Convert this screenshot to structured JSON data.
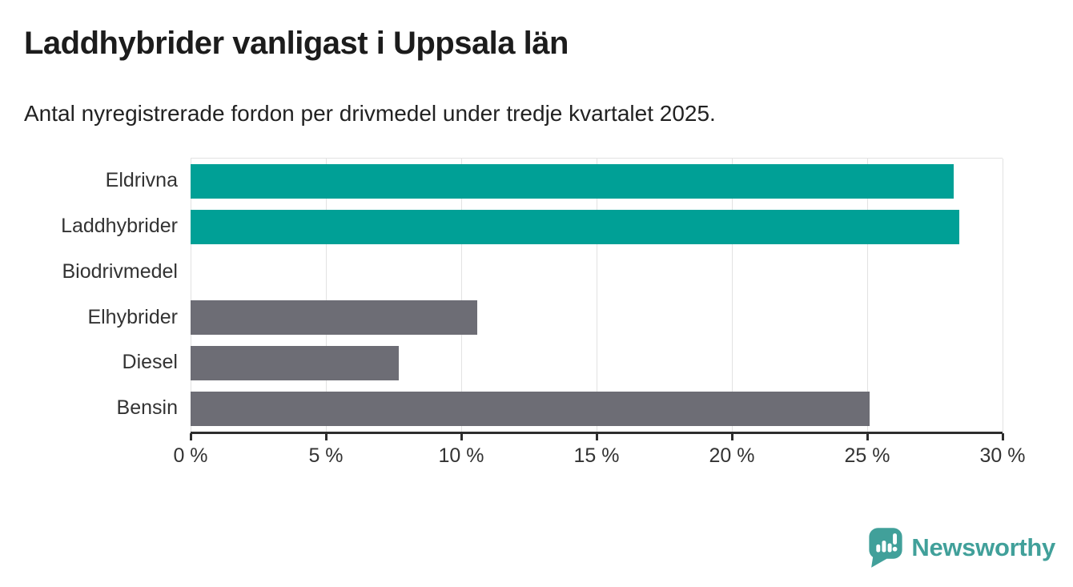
{
  "header": {
    "title": "Laddhybrider vanligast i Uppsala län",
    "subtitle": "Antal nyregistrerade fordon per drivmedel under tredje kvartalet 2025."
  },
  "chart_data": {
    "type": "bar",
    "orientation": "horizontal",
    "title": "Laddhybrider vanligast i Uppsala län",
    "subtitle": "Antal nyregistrerade fordon per drivmedel under tredje kvartalet 2025.",
    "categories": [
      "Eldrivna",
      "Laddhybrider",
      "Biodrivmedel",
      "Elhybrider",
      "Diesel",
      "Bensin"
    ],
    "values": [
      28.2,
      28.4,
      0,
      10.6,
      7.7,
      25.1
    ],
    "unit": "%",
    "xlim": [
      0,
      30
    ],
    "x_ticks": [
      0,
      5,
      10,
      15,
      20,
      25,
      30
    ],
    "x_tick_labels": [
      "0 %",
      "5 %",
      "10 %",
      "15 %",
      "20 %",
      "25 %",
      "30 %"
    ],
    "bar_colors": [
      "#00a096",
      "#00a096",
      "#6d6d75",
      "#6d6d75",
      "#6d6d75",
      "#6d6d75"
    ],
    "grid": "vertical-light",
    "legend": "none"
  },
  "colors": {
    "accent_teal": "#00a096",
    "bar_gray": "#6d6d75",
    "gridline": "#e2e2e2",
    "axis": "#2d2d2d",
    "title_text": "#1c1c1c",
    "label_text": "#333333",
    "brand_teal": "#41a09a"
  },
  "footer": {
    "brand": "Newsworthy"
  }
}
